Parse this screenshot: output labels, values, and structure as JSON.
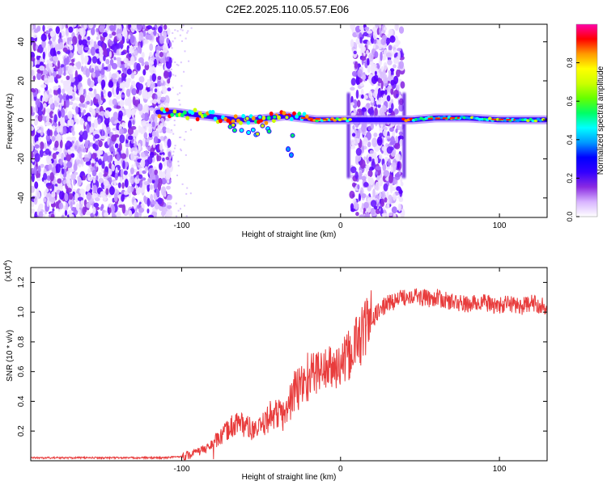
{
  "title": "C2E2.2025.110.05.57.E06",
  "chart_data": [
    {
      "type": "heatmap",
      "xlabel": "Height of straight line (km)",
      "ylabel": "Frequency (Hz)",
      "xlim": [
        -195,
        130
      ],
      "ylim": [
        -50,
        49
      ],
      "x_ticks": [
        -100,
        0,
        100
      ],
      "y_ticks": [
        -40,
        -20,
        0,
        20,
        40
      ],
      "colorbar": {
        "label": "Normalized spectral amplitude",
        "range": [
          0.0,
          1.0
        ],
        "ticks": [
          "0.0",
          "0.2",
          "0.4",
          "0.6",
          "0.8"
        ],
        "colormap": [
          "#ffffff",
          "#d8b4ff",
          "#8a2be2",
          "#3300ff",
          "#0000ff",
          "#0099ff",
          "#00ffff",
          "#00ff66",
          "#66ff00",
          "#ccff00",
          "#ffff00",
          "#ff9900",
          "#ff0000",
          "#ff00aa"
        ]
      },
      "noise_bands_km": [
        [
          -195,
          -107
        ],
        [
          7,
          39
        ]
      ],
      "ridge": [
        {
          "x": -115,
          "y": 4
        },
        {
          "x": -105,
          "y": 4
        },
        {
          "x": -95,
          "y": 3
        },
        {
          "x": -85,
          "y": 2
        },
        {
          "x": -75,
          "y": 1
        },
        {
          "x": -65,
          "y": 0
        },
        {
          "x": -55,
          "y": 0
        },
        {
          "x": -45,
          "y": 1
        },
        {
          "x": -35,
          "y": 2
        },
        {
          "x": -25,
          "y": 1
        },
        {
          "x": -15,
          "y": 0
        },
        {
          "x": -5,
          "y": 0
        },
        {
          "x": 5,
          "y": 0
        },
        {
          "x": 45,
          "y": 0
        },
        {
          "x": 60,
          "y": 1
        },
        {
          "x": 80,
          "y": 1
        },
        {
          "x": 100,
          "y": 0
        },
        {
          "x": 115,
          "y": 0
        },
        {
          "x": 130,
          "y": 0
        }
      ]
    },
    {
      "type": "line",
      "xlabel": "Height of straight line (km)",
      "ylabel": "SNR (10 * v/v)",
      "y_multiplier": "x10^4",
      "xlim": [
        -195,
        130
      ],
      "ylim": [
        0,
        1.3
      ],
      "x_ticks": [
        -100,
        0,
        100
      ],
      "y_ticks": [
        0.2,
        0.4,
        0.6,
        0.8,
        1.0,
        1.2
      ],
      "color": "#e83c3c",
      "series": [
        {
          "x": [
            -195,
            -180,
            -160,
            -140,
            -120,
            -110,
            -100,
            -95,
            -90,
            -85,
            -80,
            -75,
            -70,
            -65,
            -60,
            -55,
            -50,
            -45,
            -40,
            -35,
            -30,
            -25,
            -20,
            -15,
            -10,
            -5,
            0,
            5,
            10,
            15,
            20,
            25,
            30,
            35,
            40,
            45,
            50,
            55,
            60,
            65,
            70,
            75,
            80,
            85,
            90,
            95,
            100,
            105,
            110,
            115,
            120,
            125,
            130
          ],
          "y": [
            0.02,
            0.02,
            0.02,
            0.02,
            0.02,
            0.02,
            0.03,
            0.04,
            0.06,
            0.08,
            0.12,
            0.16,
            0.22,
            0.26,
            0.24,
            0.2,
            0.22,
            0.3,
            0.32,
            0.3,
            0.45,
            0.5,
            0.58,
            0.6,
            0.62,
            0.62,
            0.64,
            0.7,
            0.8,
            0.88,
            0.95,
            1.02,
            1.06,
            1.08,
            1.1,
            1.12,
            1.1,
            1.09,
            1.1,
            1.08,
            1.07,
            1.06,
            1.05,
            1.06,
            1.07,
            1.05,
            1.04,
            1.06,
            1.05,
            1.04,
            1.06,
            1.05,
            1.04
          ]
        }
      ]
    }
  ]
}
